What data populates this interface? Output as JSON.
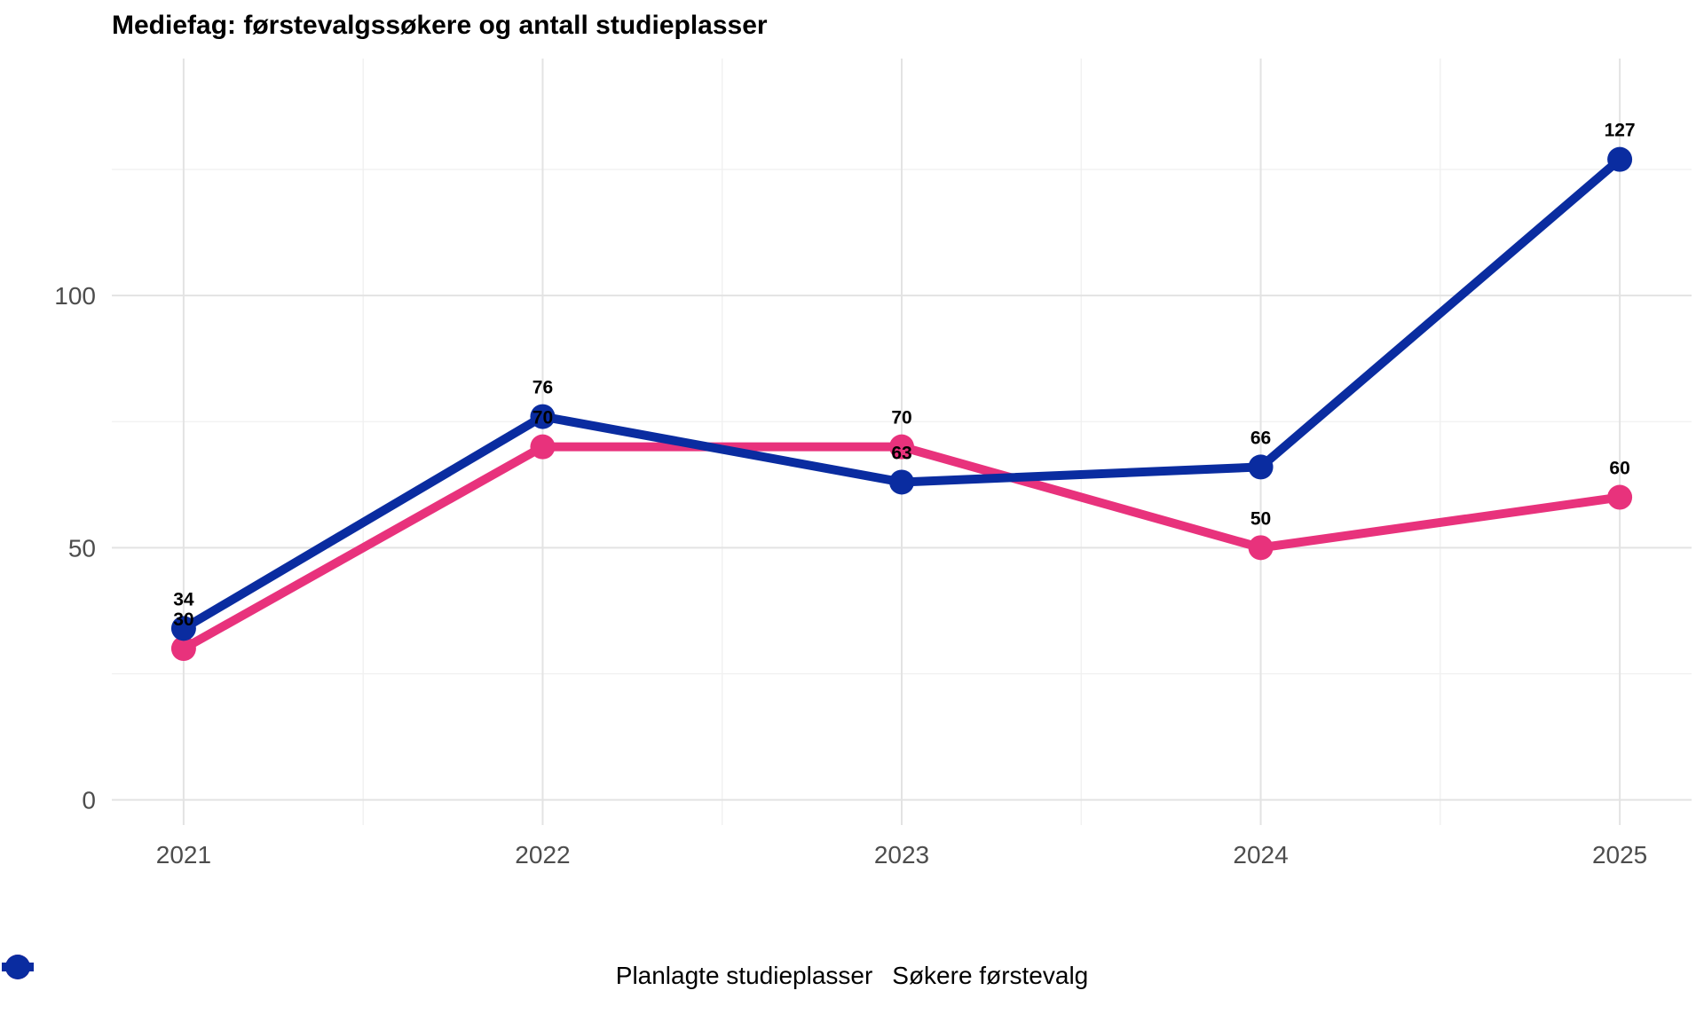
{
  "chart_data": {
    "type": "line",
    "title": "Mediefag: førstevalgssøkere og antall studieplasser",
    "xlabel": "",
    "ylabel": "",
    "categories": [
      "2021",
      "2022",
      "2023",
      "2024",
      "2025"
    ],
    "x": [
      2021,
      2022,
      2023,
      2024,
      2025
    ],
    "xlim": [
      2020.8,
      2025.2
    ],
    "ylim": [
      -5,
      147
    ],
    "yticks": [
      0,
      50,
      100
    ],
    "grid": true,
    "legend_position": "bottom",
    "series": [
      {
        "name": "Planlagte studieplasser",
        "color": "#E8327C",
        "values": [
          30,
          70,
          70,
          50,
          60
        ]
      },
      {
        "name": "Søkere førstevalg",
        "color": "#0A2CA0",
        "values": [
          34,
          76,
          63,
          66,
          127
        ]
      }
    ]
  }
}
